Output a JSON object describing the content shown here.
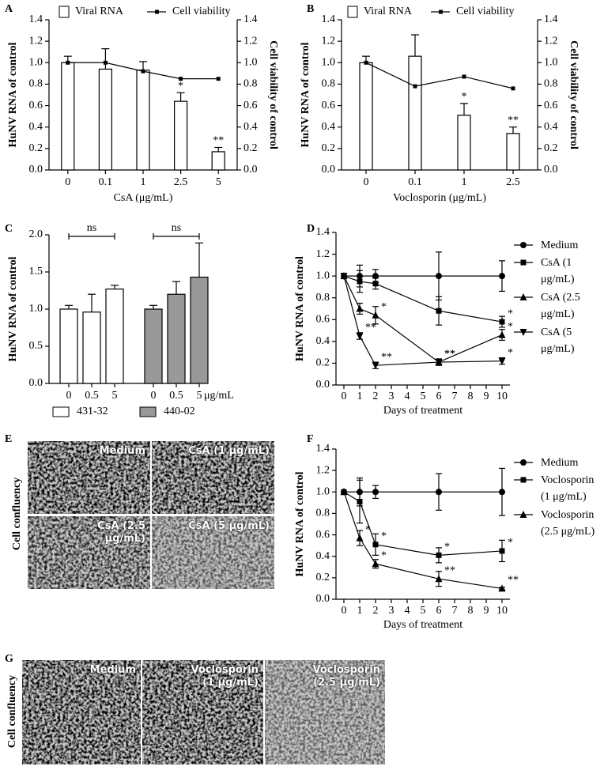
{
  "chart_data": [
    {
      "panel": "A",
      "type": "bar",
      "categories": [
        "0",
        "0.1",
        "1",
        "2.5",
        "5"
      ],
      "xlabel": "CsA (μg/mL)",
      "ylabel": "HuNV RNA of control",
      "y2label": "Cell viability of control",
      "ylim": [
        0,
        1.4
      ],
      "yticks": [
        {
          "value": 0,
          "label": "0.0"
        },
        0.2,
        0.4,
        0.6,
        0.8,
        {
          "value": 1,
          "label": "1.0"
        },
        1.2,
        1.4
      ],
      "y2lim": [
        0,
        1.4
      ],
      "y2ticks": [
        {
          "value": 0,
          "label": "0.0"
        },
        0.2,
        0.4,
        0.6,
        0.8,
        {
          "value": 1,
          "label": "1.0"
        },
        1.2,
        1.4
      ],
      "series": [
        {
          "name": "Viral RNA",
          "color": "#ffffff",
          "values": [
            1.0,
            0.94,
            0.93,
            0.64,
            0.17
          ],
          "errors": [
            0.06,
            0.19,
            0.08,
            0.08,
            0.04
          ],
          "significance": [
            null,
            null,
            null,
            "*",
            "**"
          ]
        },
        {
          "name": "Cell viability",
          "color": "#000000",
          "axis": "y2",
          "values": [
            1.0,
            1.0,
            0.92,
            0.85,
            0.85
          ]
        }
      ]
    },
    {
      "panel": "B",
      "type": "bar",
      "categories": [
        "0",
        "0.1",
        "1",
        "2.5"
      ],
      "xlabel": "Voclosporin (μg/mL)",
      "ylabel": "HuNV RNA of control",
      "y2label": "Cell viability of control",
      "ylim": [
        0,
        1.4
      ],
      "yticks": [
        {
          "value": 0,
          "label": "0.0"
        },
        0.2,
        0.4,
        0.6,
        0.8,
        {
          "value": 1,
          "label": "1.0"
        },
        1.2,
        1.4
      ],
      "y2lim": [
        0,
        1.4
      ],
      "y2ticks": [
        {
          "value": 0,
          "label": "0.0"
        },
        0.2,
        0.4,
        0.6,
        0.8,
        {
          "value": 1,
          "label": "1.0"
        },
        1.2,
        1.4
      ],
      "series": [
        {
          "name": "Viral RNA",
          "color": "#ffffff",
          "values": [
            1.0,
            1.06,
            0.51,
            0.34
          ],
          "errors": [
            0.06,
            0.2,
            0.11,
            0.06
          ],
          "significance": [
            null,
            null,
            "*",
            "**"
          ]
        },
        {
          "name": "Cell viability",
          "color": "#000000",
          "axis": "y2",
          "values": [
            1.0,
            0.78,
            0.87,
            0.76
          ]
        }
      ]
    },
    {
      "panel": "C",
      "type": "bar",
      "categories": [
        "0",
        "0.5",
        "5",
        "0",
        "0.5",
        "5"
      ],
      "unit": "μg/mL",
      "ylabel": "HuNV RNA of control",
      "ylim": [
        0,
        2.0
      ],
      "yticks": [
        {
          "value": 0,
          "label": "0.0"
        },
        0.5,
        {
          "value": 1,
          "label": "1.0"
        },
        1.5,
        {
          "value": 2,
          "label": "2.0"
        }
      ],
      "brackets": [
        "ns",
        "ns"
      ],
      "series": [
        {
          "name": "431-32",
          "color": "#ffffff",
          "values": [
            1.0,
            0.96,
            1.27,
            null,
            null,
            null
          ],
          "errors": [
            0.05,
            0.24,
            0.05,
            null,
            null,
            null
          ]
        },
        {
          "name": "440-02",
          "color": "#999999",
          "values": [
            null,
            null,
            null,
            1.0,
            1.2,
            1.43
          ],
          "errors": [
            null,
            null,
            null,
            0.05,
            0.17,
            0.46
          ]
        }
      ]
    },
    {
      "panel": "D",
      "type": "line",
      "x": [
        0,
        1,
        2,
        6,
        10
      ],
      "xlim": [
        -0.5,
        10.5
      ],
      "xticks": [
        0,
        1,
        2,
        3,
        4,
        5,
        6,
        7,
        8,
        9,
        10
      ],
      "xlabel": "Days of treatment",
      "ylabel": "HuNV RNA of control",
      "ylim": [
        0,
        1.4
      ],
      "yticks": [
        {
          "value": 0,
          "label": "0.0"
        },
        0.2,
        0.4,
        0.6,
        0.8,
        {
          "value": 1,
          "label": "1.0"
        },
        1.2,
        1.4
      ],
      "series": [
        {
          "name": "Medium",
          "marker": "circle",
          "values": [
            1,
            1,
            1,
            1,
            1
          ],
          "errors": [
            0,
            0.1,
            0.06,
            0.22,
            0.14
          ],
          "significance": [
            null,
            null,
            null,
            null,
            null
          ]
        },
        {
          "name": "CsA (1 μg/mL)",
          "marker": "square",
          "values": [
            1,
            0.95,
            0.93,
            0.68,
            0.58
          ],
          "errors": [
            0,
            0.1,
            0.05,
            0.13,
            0.05
          ],
          "significance": [
            null,
            null,
            null,
            null,
            "*"
          ]
        },
        {
          "name": "CsA (2.5 μg/mL)",
          "marker": "triangle-up",
          "values": [
            1,
            0.7,
            0.64,
            0.21,
            0.46
          ],
          "errors": [
            0,
            0.05,
            0.08,
            0.03,
            0.05
          ],
          "significance": [
            null,
            null,
            "*",
            "**",
            "*"
          ]
        },
        {
          "name": "CsA (5 μg/mL)",
          "marker": "triangle-down",
          "values": [
            1,
            0.45,
            0.18,
            0.21,
            0.22
          ],
          "errors": [
            0,
            0.03,
            0.03,
            0.02,
            0.03
          ],
          "significance": [
            null,
            "**",
            "**",
            "**",
            "*"
          ]
        }
      ]
    },
    {
      "panel": "F",
      "type": "line",
      "x": [
        0,
        1,
        2,
        6,
        10
      ],
      "xlim": [
        -0.5,
        10.5
      ],
      "xticks": [
        0,
        1,
        2,
        3,
        4,
        5,
        6,
        7,
        8,
        9,
        10
      ],
      "xlabel": "Days of treatment",
      "ylabel": "HuNV RNA of control",
      "ylim": [
        0,
        1.4
      ],
      "yticks": [
        {
          "value": 0,
          "label": "0.0"
        },
        0.2,
        0.4,
        0.6,
        0.8,
        {
          "value": 1,
          "label": "1.0"
        },
        1.2,
        1.4
      ],
      "series": [
        {
          "name": "Medium",
          "marker": "circle",
          "values": [
            1,
            1,
            1,
            1,
            1
          ],
          "errors": [
            0,
            0.13,
            0.06,
            0.17,
            0.22
          ],
          "significance": [
            null,
            null,
            null,
            null,
            null
          ]
        },
        {
          "name": "Voclosporin (1 μg/mL)",
          "marker": "square",
          "values": [
            1,
            0.91,
            0.51,
            0.41,
            0.45
          ],
          "errors": [
            0,
            0.2,
            0.1,
            0.07,
            0.1
          ],
          "significance": [
            null,
            null,
            "*",
            "*",
            "*"
          ]
        },
        {
          "name": "Voclosporin (2.5 μg/mL)",
          "marker": "triangle-up",
          "values": [
            1,
            0.57,
            0.33,
            0.19,
            0.1
          ],
          "errors": [
            0,
            0.07,
            0.04,
            0.07,
            0.01
          ],
          "significance": [
            null,
            "*",
            "*",
            "**",
            "**"
          ]
        }
      ]
    }
  ],
  "image_panels": [
    {
      "panel": "E",
      "ylabel": "Cell confluency",
      "images": [
        "Medium",
        "CsA (1 μg/mL)",
        "CsA (2.5 μg/mL)",
        "CsA (5 μg/mL)"
      ]
    },
    {
      "panel": "G",
      "ylabel": "Cell confluency",
      "images": [
        "Medium",
        "Voclosporin (1 μg/mL)",
        "Voclosporin (2.5 μg/mL)"
      ]
    }
  ]
}
